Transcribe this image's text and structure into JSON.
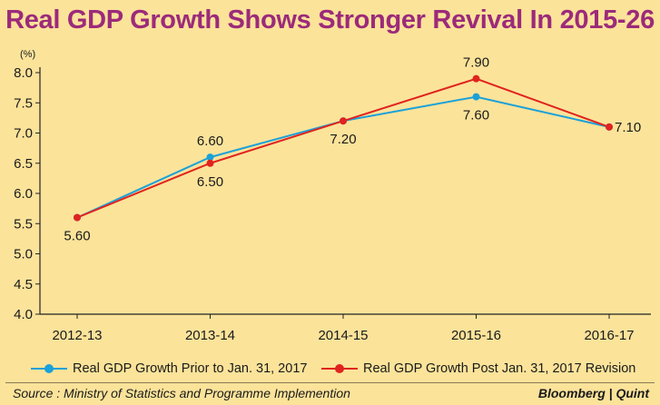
{
  "title": "Real GDP Growth Shows Stronger Revival In 2015-26",
  "chart_data": {
    "type": "line",
    "unit_label": "(%)",
    "categories": [
      "2012-13",
      "2013-14",
      "2014-15",
      "2015-16",
      "2016-17"
    ],
    "ylim": [
      4.0,
      8.0
    ],
    "yticks": [
      "4.0",
      "4.5",
      "5.0",
      "5.5",
      "6.0",
      "6.5",
      "7.0",
      "7.5",
      "8.0"
    ],
    "grid": false,
    "legend_placement": "bottom",
    "series": [
      {
        "name": "Real GDP Growth Prior to Jan. 31, 2017",
        "color": "#1ba1d9",
        "values": [
          5.6,
          6.6,
          7.2,
          7.6,
          7.1
        ],
        "labels": [
          "",
          "6.60",
          "",
          "7.60",
          ""
        ],
        "label_pos": [
          "",
          "above",
          "",
          "below",
          ""
        ]
      },
      {
        "name": "Real GDP Growth Post Jan. 31, 2017 Revision",
        "color": "#e0231e",
        "values": [
          5.6,
          6.5,
          7.2,
          7.9,
          7.1
        ],
        "labels": [
          "5.60",
          "6.50",
          "7.20",
          "7.90",
          "7.10"
        ],
        "label_pos": [
          "below",
          "below",
          "below",
          "above",
          "right"
        ]
      }
    ]
  },
  "footer": {
    "source": "Source : Ministry of Statistics and Programme Implemention",
    "brand": "Bloomberg | Quint"
  }
}
